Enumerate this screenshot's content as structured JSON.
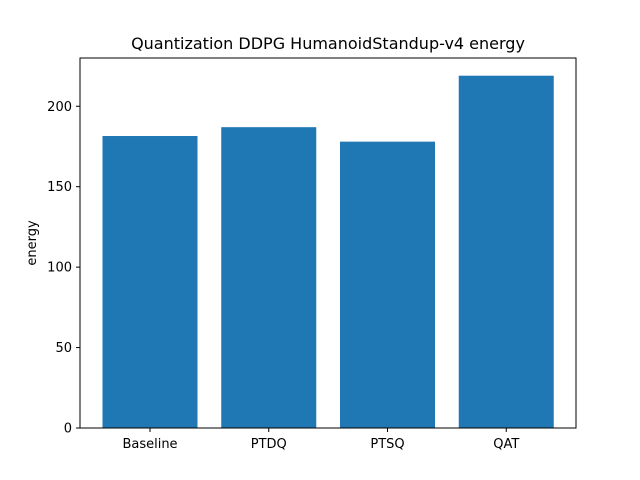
{
  "chart_data": {
    "type": "bar",
    "title": "Quantization DDPG HumanoidStandup-v4 energy",
    "xlabel": "",
    "ylabel": "energy",
    "categories": [
      "Baseline",
      "PTDQ",
      "PTSQ",
      "QAT"
    ],
    "values": [
      181.5,
      187.0,
      178.0,
      219.0
    ],
    "ylim": [
      0,
      230
    ],
    "yticks": [
      0,
      50,
      100,
      150,
      200
    ],
    "grid": false,
    "legend": "none",
    "bar_color": "#1f77b4"
  }
}
